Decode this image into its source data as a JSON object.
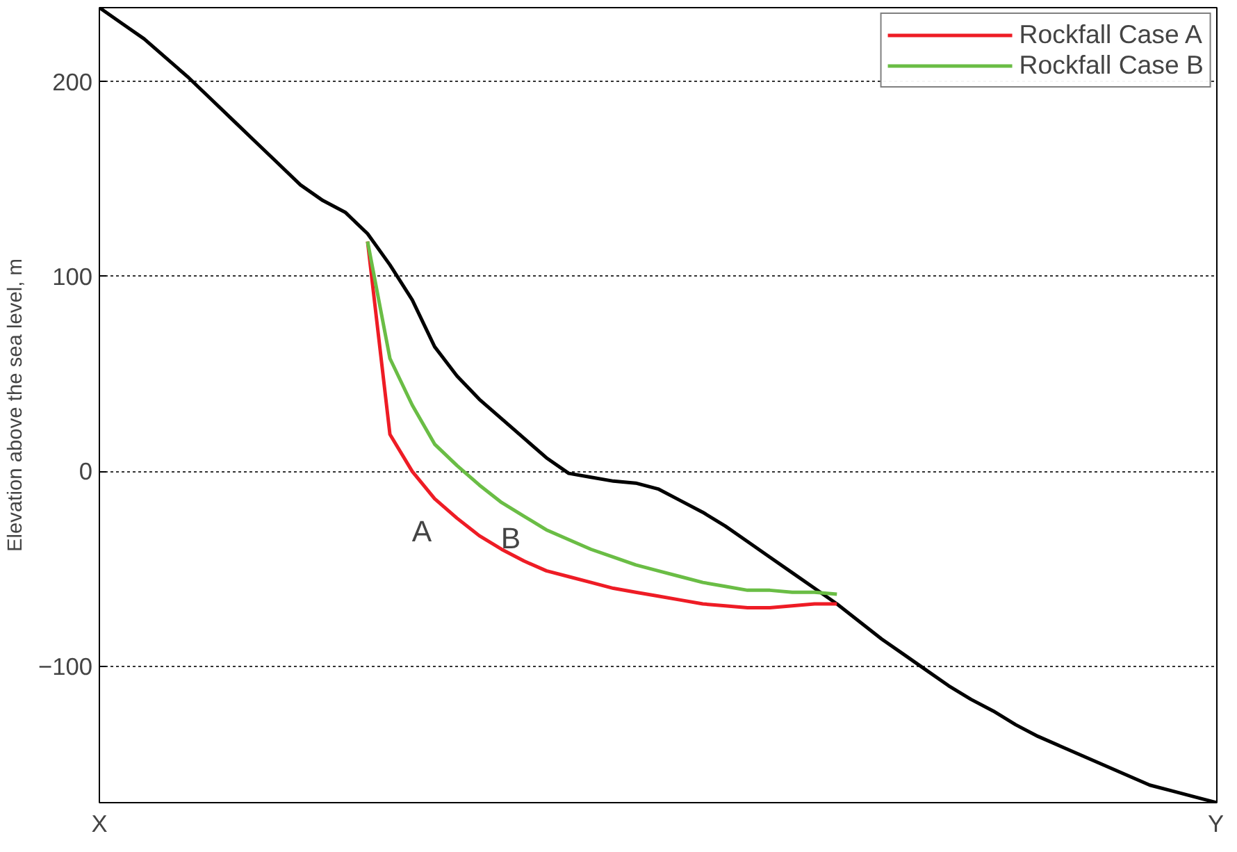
{
  "chart_data": {
    "type": "line",
    "ylabel": "Elevation above the sea level, m",
    "categories": [
      "X",
      null,
      null,
      null,
      null,
      null,
      null,
      null,
      null,
      null,
      null,
      null,
      null,
      null,
      null,
      null,
      null,
      null,
      null,
      null,
      null,
      null,
      null,
      null,
      null,
      null,
      null,
      null,
      null,
      null,
      null,
      null,
      null,
      null,
      null,
      null,
      null,
      null,
      null,
      null,
      null,
      null,
      null,
      null,
      null,
      null,
      null,
      null,
      null,
      null,
      "Y"
    ],
    "ylim": [
      -170,
      238
    ],
    "yticks": [
      -100,
      0,
      100,
      200
    ],
    "grid": "y",
    "legend": "top right",
    "line_style": "solid",
    "series": [
      {
        "color": "#000000",
        "values": [
          238,
          230,
          222,
          212,
          202,
          191,
          180,
          169,
          158,
          147,
          139,
          133,
          122,
          106,
          88,
          64,
          49,
          37,
          27,
          17,
          7,
          -1,
          -3,
          -5,
          -6,
          -9,
          -15,
          -21,
          -28,
          -36,
          -44,
          -52,
          -60,
          -68,
          -77,
          -86,
          -94,
          -102,
          -110,
          -117,
          -123,
          -130,
          -136,
          -141,
          -146,
          -151,
          -156,
          -161,
          -164,
          -167,
          -170
        ]
      },
      {
        "name": "Rockfall Case A",
        "color": "#ee1c25",
        "values": [
          null,
          null,
          null,
          null,
          null,
          null,
          null,
          null,
          null,
          null,
          null,
          null,
          118,
          19,
          0,
          -14,
          -24,
          -33,
          -40,
          -46,
          -51,
          -54,
          -57,
          -60,
          -62,
          -64,
          -66,
          -68,
          -69,
          -70,
          -70,
          -69,
          -68,
          -68,
          null,
          null,
          null,
          null,
          null,
          null,
          null,
          null,
          null,
          null,
          null,
          null,
          null,
          null,
          null,
          null,
          null
        ]
      },
      {
        "name": "Rockfall Case B",
        "color": "#6abd45",
        "values": [
          null,
          null,
          null,
          null,
          null,
          null,
          null,
          null,
          null,
          null,
          null,
          null,
          118,
          58,
          34,
          14,
          3,
          -7,
          -16,
          -23,
          -30,
          -35,
          -40,
          -44,
          -48,
          -51,
          -54,
          -57,
          -59,
          -61,
          -61,
          -62,
          -62,
          -63,
          null,
          null,
          null,
          null,
          null,
          null,
          null,
          null,
          null,
          null,
          null,
          null,
          null,
          null,
          null,
          null,
          null
        ]
      }
    ],
    "annotations": [
      "A",
      "B"
    ]
  }
}
